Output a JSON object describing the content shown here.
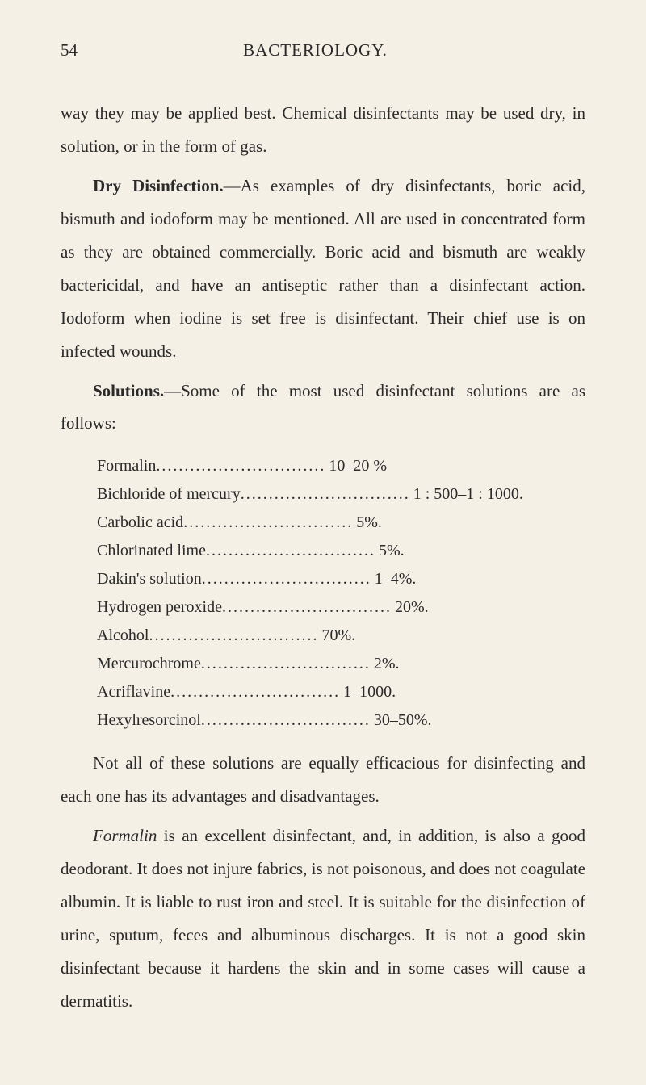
{
  "page": {
    "number": "54",
    "title": "BACTERIOLOGY."
  },
  "paragraphs": {
    "p1": "way they may be applied best. Chemical disinfectants may be used dry, in solution, or in the form of gas.",
    "p2_heading": "Dry Disinfection.",
    "p2_text": "—As examples of dry disinfectants, boric acid, bismuth and iodoform may be mentioned. All are used in concentrated form as they are obtained commercially. Boric acid and bismuth are weakly bactericidal, and have an antiseptic rather than a disinfectant action. Iodoform when iodine is set free is disinfectant. Their chief use is on infected wounds.",
    "p3_heading": "Solutions.",
    "p3_text": "—Some of the most used disinfectant solutions are as follows:",
    "p4": "Not all of these solutions are equally efficacious for disinfecting and each one has its advantages and disadvantages.",
    "p5_italic": "Formalin",
    "p5_text": " is an excellent disinfectant, and, in addition, is also a good deodorant. It does not injure fabrics, is not poisonous, and does not coagulate albumin. It is liable to rust iron and steel. It is suitable for the disinfection of urine, sputum, feces and albuminous discharges. It is not a good skin disinfectant because it hardens the skin and in some cases will cause a dermatitis."
  },
  "disinfectants": [
    {
      "name": "Formalin ",
      "value": " 10–20 %"
    },
    {
      "name": "Bichloride of mercury ",
      "value": " 1 : 500–1 : 1000."
    },
    {
      "name": "Carbolic acid ",
      "value": " 5%."
    },
    {
      "name": "Chlorinated lime ",
      "value": " 5%."
    },
    {
      "name": "Dakin's solution ",
      "value": " 1–4%."
    },
    {
      "name": "Hydrogen peroxide ",
      "value": " 20%."
    },
    {
      "name": "Alcohol ",
      "value": " 70%."
    },
    {
      "name": "Mercurochrome ",
      "value": " 2%."
    },
    {
      "name": "Acriflavine ",
      "value": " 1–1000."
    },
    {
      "name": "Hexylresorcinol ",
      "value": " 30–50%."
    }
  ],
  "dots": ".............................."
}
